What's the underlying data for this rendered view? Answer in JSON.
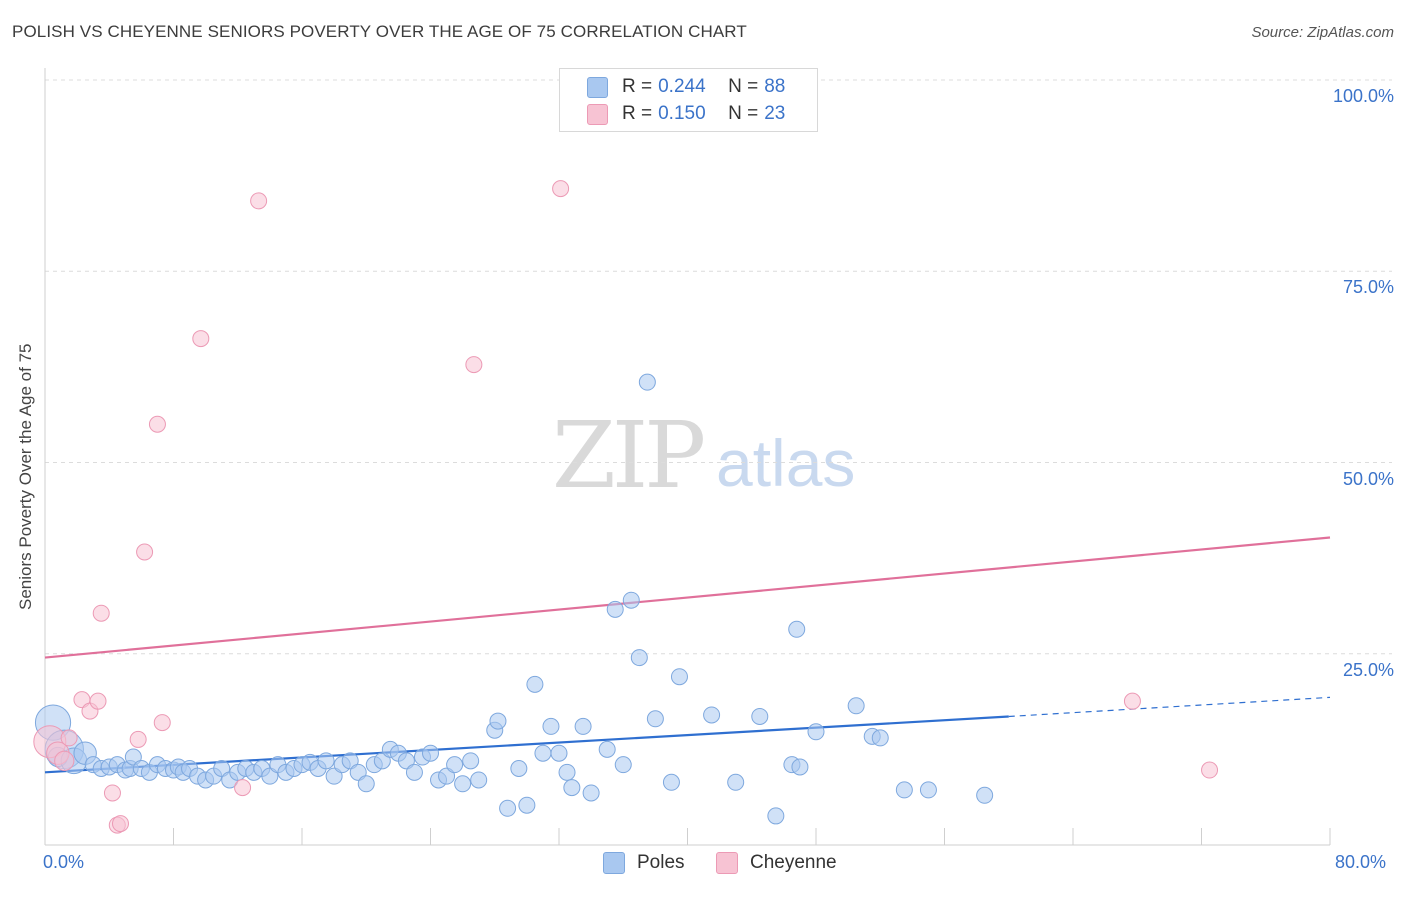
{
  "title": "POLISH VS CHEYENNE SENIORS POVERTY OVER THE AGE OF 75 CORRELATION CHART",
  "source": "Source: ZipAtlas.com",
  "watermark": {
    "zip": "ZIP",
    "atlas": "atlas"
  },
  "legend": {
    "rows": [
      {
        "r_label": "R =",
        "r_value": "0.244",
        "n_label": "N =",
        "n_value": "88",
        "color": "#a9c8f0",
        "border": "#7ea8de"
      },
      {
        "r_label": "R =",
        "r_value": "0.150",
        "n_label": "N =",
        "n_value": "23",
        "color": "#f7c3d3",
        "border": "#ec9ab5"
      }
    ]
  },
  "bottom_legend": [
    {
      "label": "Poles",
      "color": "#a9c8f0",
      "border": "#7ea8de"
    },
    {
      "label": "Cheyenne",
      "color": "#f7c3d3",
      "border": "#ec9ab5"
    }
  ],
  "chart_data": {
    "type": "scatter",
    "title": "POLISH VS CHEYENNE SENIORS POVERTY OVER THE AGE OF 75 CORRELATION CHART",
    "xlabel": "",
    "ylabel": "Seniors Poverty Over the Age of 75",
    "xlim": [
      0,
      80
    ],
    "ylim": [
      0,
      100
    ],
    "x_tick_labels": {
      "min": "0.0%",
      "max": "80.0%"
    },
    "y_ticks": [
      {
        "value": 25,
        "label": "25.0%"
      },
      {
        "value": 50,
        "label": "50.0%"
      },
      {
        "value": 75,
        "label": "75.0%"
      },
      {
        "value": 100,
        "label": "100.0%"
      }
    ],
    "series": [
      {
        "name": "Poles",
        "color": "#a9c8f0",
        "stroke": "#7ea8de",
        "line_color": "#2f6fd0",
        "trend": {
          "x0": 0,
          "y0": 9.5,
          "x1": 60,
          "y1": 16.8,
          "dashed_to_x": 80,
          "dashed_to_y": 19.3
        },
        "points": [
          {
            "x": 0.5,
            "y": 16.0,
            "s": 2.2
          },
          {
            "x": 1.2,
            "y": 12.5,
            "s": 2.4
          },
          {
            "x": 0.8,
            "y": 11.5,
            "s": 1.2
          },
          {
            "x": 1.8,
            "y": 11.0,
            "s": 1.6
          },
          {
            "x": 2.5,
            "y": 12.0,
            "s": 1.4
          },
          {
            "x": 3.0,
            "y": 10.5,
            "s": 1.0
          },
          {
            "x": 3.5,
            "y": 10.0,
            "s": 1.0
          },
          {
            "x": 4.0,
            "y": 10.2,
            "s": 1.0
          },
          {
            "x": 4.5,
            "y": 10.5,
            "s": 1.0
          },
          {
            "x": 5.0,
            "y": 9.8,
            "s": 1.0
          },
          {
            "x": 5.3,
            "y": 10.0,
            "s": 1.0
          },
          {
            "x": 5.5,
            "y": 11.5,
            "s": 1.0
          },
          {
            "x": 6.0,
            "y": 10.0,
            "s": 1.0
          },
          {
            "x": 6.5,
            "y": 9.5,
            "s": 1.0
          },
          {
            "x": 7.0,
            "y": 10.5,
            "s": 1.0
          },
          {
            "x": 7.5,
            "y": 10.0,
            "s": 1.0
          },
          {
            "x": 8.0,
            "y": 9.8,
            "s": 1.0
          },
          {
            "x": 8.3,
            "y": 10.2,
            "s": 1.0
          },
          {
            "x": 8.6,
            "y": 9.5,
            "s": 1.0
          },
          {
            "x": 9.0,
            "y": 10.0,
            "s": 1.0
          },
          {
            "x": 9.5,
            "y": 9.0,
            "s": 1.0
          },
          {
            "x": 10.0,
            "y": 8.5,
            "s": 1.0
          },
          {
            "x": 10.5,
            "y": 9.0,
            "s": 1.0
          },
          {
            "x": 11.0,
            "y": 10.0,
            "s": 1.0
          },
          {
            "x": 11.5,
            "y": 8.5,
            "s": 1.0
          },
          {
            "x": 12.0,
            "y": 9.5,
            "s": 1.0
          },
          {
            "x": 12.5,
            "y": 10.0,
            "s": 1.0
          },
          {
            "x": 13.0,
            "y": 9.5,
            "s": 1.0
          },
          {
            "x": 13.5,
            "y": 10.0,
            "s": 1.0
          },
          {
            "x": 14.0,
            "y": 9.0,
            "s": 1.0
          },
          {
            "x": 14.5,
            "y": 10.5,
            "s": 1.0
          },
          {
            "x": 15.0,
            "y": 9.5,
            "s": 1.0
          },
          {
            "x": 15.5,
            "y": 10.0,
            "s": 1.0
          },
          {
            "x": 16.0,
            "y": 10.5,
            "s": 1.0
          },
          {
            "x": 16.5,
            "y": 10.8,
            "s": 1.0
          },
          {
            "x": 17.0,
            "y": 10.0,
            "s": 1.0
          },
          {
            "x": 17.5,
            "y": 11.0,
            "s": 1.0
          },
          {
            "x": 18.0,
            "y": 9.0,
            "s": 1.0
          },
          {
            "x": 18.5,
            "y": 10.5,
            "s": 1.0
          },
          {
            "x": 19.0,
            "y": 11.0,
            "s": 1.0
          },
          {
            "x": 19.5,
            "y": 9.5,
            "s": 1.0
          },
          {
            "x": 20.0,
            "y": 8.0,
            "s": 1.0
          },
          {
            "x": 20.5,
            "y": 10.5,
            "s": 1.0
          },
          {
            "x": 21.0,
            "y": 11.0,
            "s": 1.0
          },
          {
            "x": 21.5,
            "y": 12.5,
            "s": 1.0
          },
          {
            "x": 22.0,
            "y": 12.0,
            "s": 1.0
          },
          {
            "x": 22.5,
            "y": 11.0,
            "s": 1.0
          },
          {
            "x": 23.0,
            "y": 9.5,
            "s": 1.0
          },
          {
            "x": 23.5,
            "y": 11.5,
            "s": 1.0
          },
          {
            "x": 24.0,
            "y": 12.0,
            "s": 1.0
          },
          {
            "x": 24.5,
            "y": 8.5,
            "s": 1.0
          },
          {
            "x": 25.0,
            "y": 9.0,
            "s": 1.0
          },
          {
            "x": 25.5,
            "y": 10.5,
            "s": 1.0
          },
          {
            "x": 26.0,
            "y": 8.0,
            "s": 1.0
          },
          {
            "x": 26.5,
            "y": 11.0,
            "s": 1.0
          },
          {
            "x": 27.0,
            "y": 8.5,
            "s": 1.0
          },
          {
            "x": 28.0,
            "y": 15.0,
            "s": 1.0
          },
          {
            "x": 28.2,
            "y": 16.2,
            "s": 1.0
          },
          {
            "x": 28.8,
            "y": 4.8,
            "s": 1.0
          },
          {
            "x": 29.5,
            "y": 10.0,
            "s": 1.0
          },
          {
            "x": 30.0,
            "y": 5.2,
            "s": 1.0
          },
          {
            "x": 30.5,
            "y": 21.0,
            "s": 1.0
          },
          {
            "x": 31.0,
            "y": 12.0,
            "s": 1.0
          },
          {
            "x": 31.5,
            "y": 15.5,
            "s": 1.0
          },
          {
            "x": 32.0,
            "y": 12.0,
            "s": 1.0
          },
          {
            "x": 32.5,
            "y": 9.5,
            "s": 1.0
          },
          {
            "x": 32.8,
            "y": 7.5,
            "s": 1.0
          },
          {
            "x": 33.5,
            "y": 15.5,
            "s": 1.0
          },
          {
            "x": 34.0,
            "y": 6.8,
            "s": 1.0
          },
          {
            "x": 35.0,
            "y": 12.5,
            "s": 1.0
          },
          {
            "x": 35.5,
            "y": 30.8,
            "s": 1.0
          },
          {
            "x": 36.0,
            "y": 10.5,
            "s": 1.0
          },
          {
            "x": 36.5,
            "y": 32.0,
            "s": 1.0
          },
          {
            "x": 37.0,
            "y": 24.5,
            "s": 1.0
          },
          {
            "x": 37.5,
            "y": 60.5,
            "s": 1.0
          },
          {
            "x": 38.0,
            "y": 16.5,
            "s": 1.0
          },
          {
            "x": 39.0,
            "y": 8.2,
            "s": 1.0
          },
          {
            "x": 39.5,
            "y": 22.0,
            "s": 1.0
          },
          {
            "x": 41.5,
            "y": 17.0,
            "s": 1.0
          },
          {
            "x": 43.0,
            "y": 8.2,
            "s": 1.0
          },
          {
            "x": 44.5,
            "y": 16.8,
            "s": 1.0
          },
          {
            "x": 45.5,
            "y": 3.8,
            "s": 1.0
          },
          {
            "x": 46.5,
            "y": 10.5,
            "s": 1.0
          },
          {
            "x": 46.8,
            "y": 28.2,
            "s": 1.0
          },
          {
            "x": 47.0,
            "y": 10.2,
            "s": 1.0
          },
          {
            "x": 48.0,
            "y": 14.8,
            "s": 1.0
          },
          {
            "x": 50.5,
            "y": 18.2,
            "s": 1.0
          },
          {
            "x": 51.5,
            "y": 14.2,
            "s": 1.0
          },
          {
            "x": 52.0,
            "y": 14.0,
            "s": 1.0
          },
          {
            "x": 53.5,
            "y": 7.2,
            "s": 1.0
          },
          {
            "x": 55.0,
            "y": 7.2,
            "s": 1.0
          },
          {
            "x": 58.5,
            "y": 6.5,
            "s": 1.0
          }
        ]
      },
      {
        "name": "Cheyenne",
        "color": "#f7c3d3",
        "stroke": "#ec9ab5",
        "line_color": "#e0709a",
        "trend": {
          "x0": 0,
          "y0": 24.5,
          "x1": 80,
          "y1": 40.2
        },
        "points": [
          {
            "x": 0.3,
            "y": 13.5,
            "s": 2.0
          },
          {
            "x": 0.8,
            "y": 12.0,
            "s": 1.4
          },
          {
            "x": 1.2,
            "y": 11.0,
            "s": 1.2
          },
          {
            "x": 1.5,
            "y": 14.0,
            "s": 1.0
          },
          {
            "x": 2.3,
            "y": 19.0,
            "s": 1.0
          },
          {
            "x": 2.8,
            "y": 17.5,
            "s": 1.0
          },
          {
            "x": 3.3,
            "y": 18.8,
            "s": 1.0
          },
          {
            "x": 3.5,
            "y": 30.3,
            "s": 1.0
          },
          {
            "x": 4.2,
            "y": 6.8,
            "s": 1.0
          },
          {
            "x": 4.5,
            "y": 2.6,
            "s": 1.0
          },
          {
            "x": 4.7,
            "y": 2.8,
            "s": 1.0
          },
          {
            "x": 5.8,
            "y": 13.8,
            "s": 1.0
          },
          {
            "x": 6.2,
            "y": 38.3,
            "s": 1.0
          },
          {
            "x": 7.0,
            "y": 55.0,
            "s": 1.0
          },
          {
            "x": 7.3,
            "y": 16.0,
            "s": 1.0
          },
          {
            "x": 9.7,
            "y": 66.2,
            "s": 1.0
          },
          {
            "x": 12.3,
            "y": 7.5,
            "s": 1.0
          },
          {
            "x": 13.3,
            "y": 84.2,
            "s": 1.0
          },
          {
            "x": 26.7,
            "y": 62.8,
            "s": 1.0
          },
          {
            "x": 32.1,
            "y": 85.8,
            "s": 1.0
          },
          {
            "x": 67.7,
            "y": 18.8,
            "s": 1.0
          },
          {
            "x": 72.5,
            "y": 9.8,
            "s": 1.0
          }
        ]
      }
    ]
  }
}
